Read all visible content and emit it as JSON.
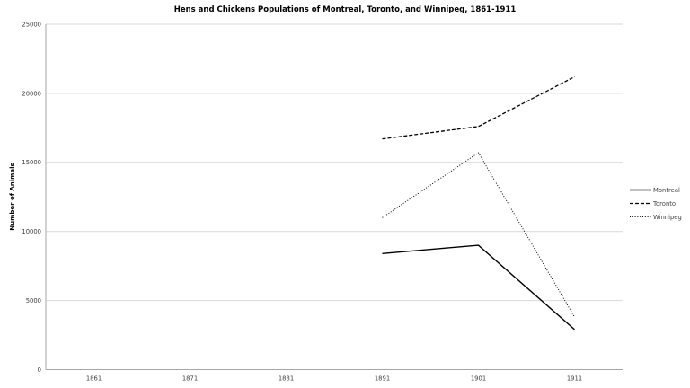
{
  "chart_data": {
    "type": "line",
    "title": "Hens and Chickens Populations of Montreal, Toronto, and Winnipeg, 1861-1911",
    "xlabel": "",
    "ylabel": "Number of Animals",
    "categories": [
      "1861",
      "1871",
      "1881",
      "1891",
      "1901",
      "1911"
    ],
    "ylim": [
      0,
      25000
    ],
    "ytick_step": 5000,
    "grid": true,
    "legend_position": "right",
    "series": [
      {
        "name": "Montreal",
        "style": "solid",
        "values": [
          null,
          null,
          null,
          8400,
          9000,
          2900
        ]
      },
      {
        "name": "Toronto",
        "style": "dashed",
        "values": [
          null,
          null,
          null,
          16700,
          17600,
          21200
        ]
      },
      {
        "name": "Winnipeg",
        "style": "dotted",
        "values": [
          null,
          null,
          null,
          11000,
          15700,
          3800
        ]
      }
    ]
  },
  "colors": {
    "line": "#000000",
    "gridline": "#d9d9d9",
    "axis": "#a6a6a6",
    "tick_text": "#3f3f3f",
    "background": "#ffffff"
  }
}
